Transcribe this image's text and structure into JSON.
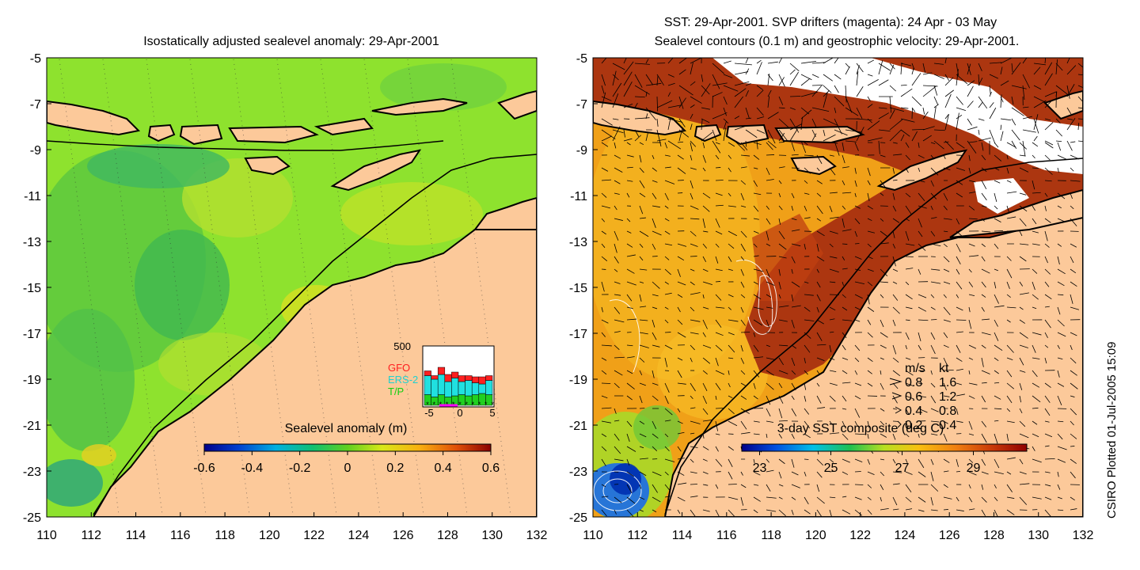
{
  "left_panel": {
    "title": "Isostatically adjusted sealevel anomaly: 29-Apr-2001",
    "colorbar": {
      "label": "Sealevel anomaly (m)",
      "min": -0.6,
      "max": 0.6,
      "ticks": [
        "-0.6",
        "-0.4",
        "-0.2",
        "0",
        "0.2",
        "0.4",
        "0.6"
      ]
    },
    "inset": {
      "ymax_label": "500",
      "legend": [
        {
          "name": "GFO",
          "color": "#ff2020"
        },
        {
          "name": "ERS-2",
          "color": "#20e0e0"
        },
        {
          "name": "T/P",
          "color": "#20d020"
        }
      ],
      "xticks": [
        "-5",
        "0",
        "5"
      ],
      "bars": [
        {
          "tp": 90,
          "ers": 160,
          "gfo": 40
        },
        {
          "tp": 70,
          "ers": 150,
          "gfo": 30
        },
        {
          "tp": 90,
          "ers": 170,
          "gfo": 60
        },
        {
          "tp": 70,
          "ers": 130,
          "gfo": 60
        },
        {
          "tp": 80,
          "ers": 150,
          "gfo": 50
        },
        {
          "tp": 90,
          "ers": 110,
          "gfo": 50
        },
        {
          "tp": 80,
          "ers": 130,
          "gfo": 40
        },
        {
          "tp": 90,
          "ers": 100,
          "gfo": 50
        },
        {
          "tp": 100,
          "ers": 80,
          "gfo": 60
        },
        {
          "tp": 90,
          "ers": 120,
          "gfo": 40
        }
      ]
    }
  },
  "right_panel": {
    "title_line1": "SST: 29-Apr-2001. SVP drifters (magenta): 24 Apr - 03 May",
    "title_line2": "Sealevel contours (0.1 m) and geostrophic velocity: 29-Apr-2001.",
    "colorbar": {
      "label": "3-day SST composite (deg C)",
      "min": 22.5,
      "max": 30.5,
      "ticks": [
        "23",
        "25",
        "27",
        "29"
      ]
    },
    "velocity_legend": {
      "header_ms": "m/s",
      "header_kt": "kt",
      "rows": [
        {
          "ms": "0.8",
          "kt": "1.6"
        },
        {
          "ms": "0.6",
          "kt": "1.2"
        },
        {
          "ms": "0.4",
          "kt": "0.8"
        },
        {
          "ms": "0.2",
          "kt": "0.4"
        }
      ]
    }
  },
  "axes": {
    "x_ticks": [
      "110",
      "112",
      "114",
      "116",
      "118",
      "120",
      "122",
      "124",
      "126",
      "128",
      "130",
      "132"
    ],
    "y_ticks": [
      "-5",
      "-7",
      "-9",
      "-11",
      "-13",
      "-15",
      "-17",
      "-19",
      "-21",
      "-23",
      "-25"
    ],
    "lon_range": [
      110,
      132
    ],
    "lat_range": [
      -25,
      -5
    ]
  },
  "credit": "CSIRO Plotted 01-Jul-2005 15:09",
  "colors": {
    "land": "#fcc99a",
    "coast": "#000000",
    "sla_background": "#8ee22e",
    "sst_background": "#f0a018",
    "sst_hot": "#a02808"
  }
}
